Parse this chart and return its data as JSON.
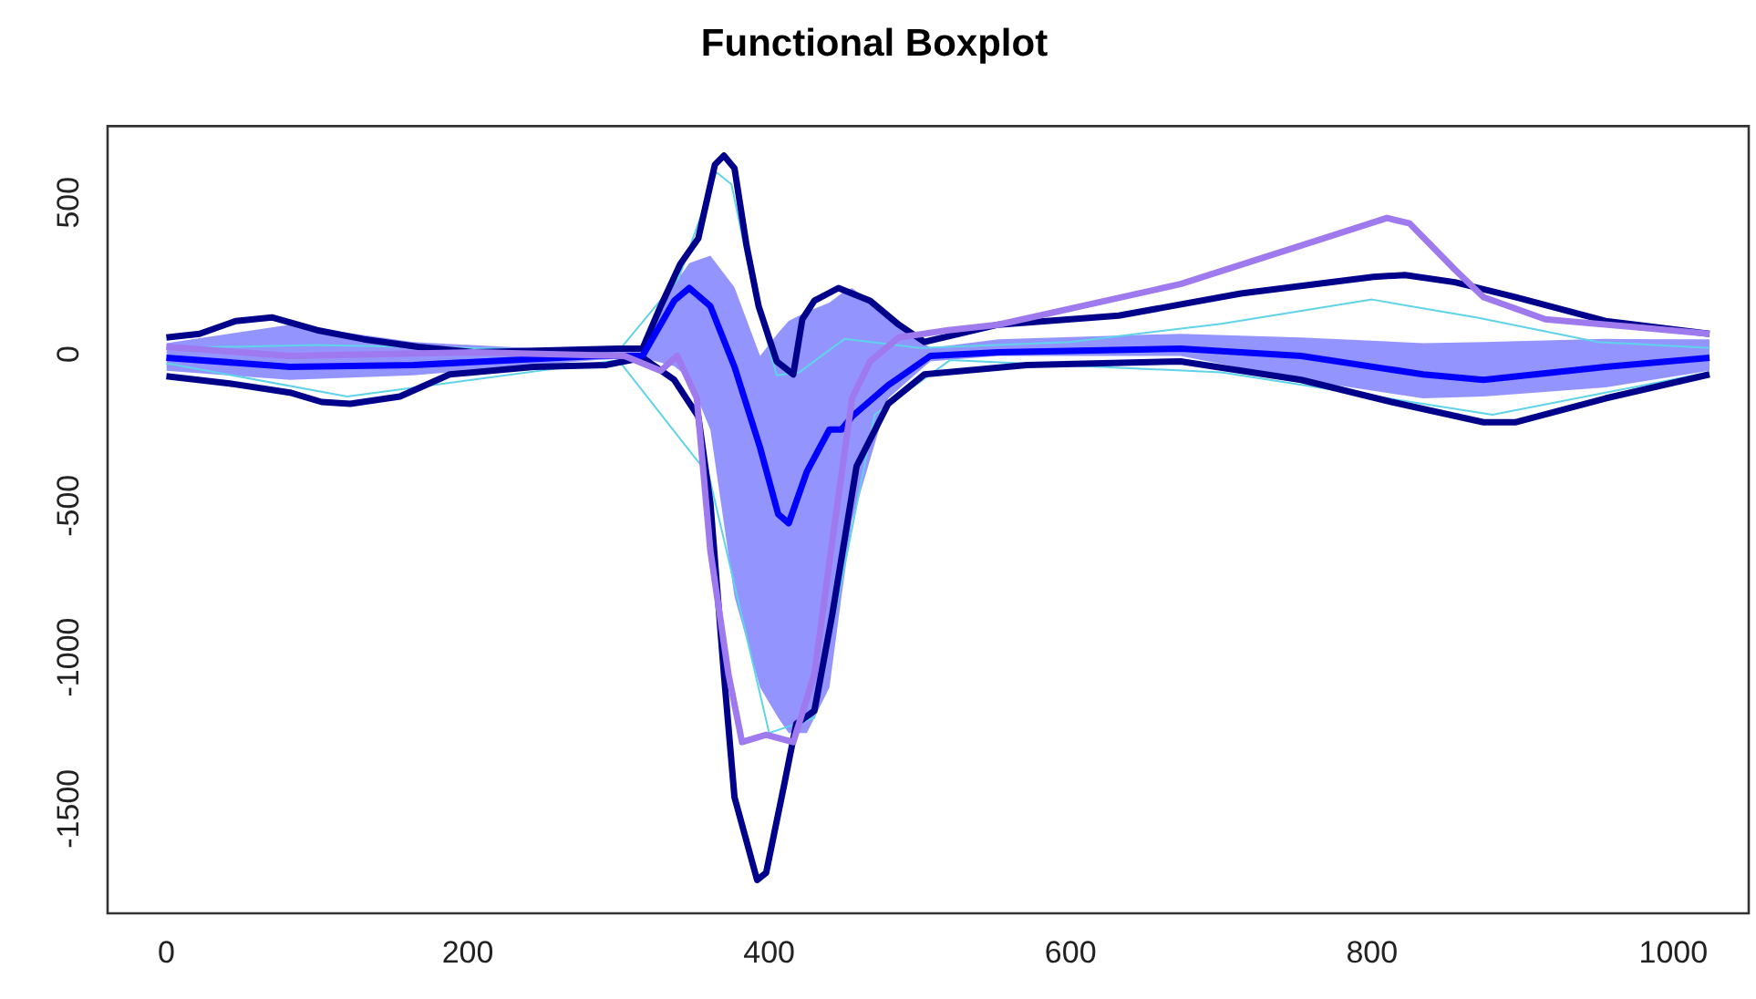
{
  "chart_data": {
    "type": "line",
    "title": "Functional Boxplot",
    "xlim": [
      -39,
      1050
    ],
    "xticks": [
      0,
      200,
      400,
      600,
      800,
      1000
    ],
    "ylim": [
      -1845,
      752
    ],
    "yticks": [
      -1500,
      -1000,
      -500,
      0,
      500
    ],
    "grid": false,
    "legend": false,
    "marker": "none",
    "line_style": "solid",
    "series": [
      {
        "color": "#5fd3e8",
        "x": [
          0,
          100,
          300,
          340,
          365,
          375,
          390,
          405,
          420,
          450,
          500,
          600,
          700,
          800,
          870,
          950,
          1024
        ],
        "values": [
          20,
          30,
          10,
          250,
          600,
          560,
          200,
          -70,
          -60,
          50,
          20,
          40,
          100,
          180,
          120,
          40,
          20
        ]
      },
      {
        "color": "#5fd3e8",
        "x": [
          0,
          120,
          300,
          360,
          400,
          430,
          470,
          520,
          700,
          880,
          1024
        ],
        "values": [
          -30,
          -140,
          -20,
          -400,
          -1250,
          -1200,
          -200,
          -20,
          -60,
          -200,
          -60
        ]
      },
      {
        "color": "#00008b",
        "x": [
          0,
          22,
          46,
          70,
          100,
          131,
          167,
          204,
          252,
          300,
          316,
          328,
          341,
          353,
          364,
          370,
          377,
          385,
          393,
          405,
          416,
          422,
          430,
          446,
          467,
          486,
          503,
          552,
          632,
          713,
          801,
          822,
          855,
          895,
          955,
          1024
        ],
        "values": [
          55,
          67,
          109,
          121,
          79,
          49,
          24,
          6,
          12,
          18,
          18,
          158,
          297,
          382,
          625,
          655,
          613,
          358,
          158,
          -24,
          -67,
          115,
          176,
          218,
          176,
          97,
          40,
          97,
          127,
          200,
          255,
          261,
          237,
          188,
          109,
          67
        ]
      },
      {
        "color": "#00008b",
        "x": [
          0,
          42,
          82,
          103,
          122,
          155,
          188,
          244,
          292,
          316,
          337,
          353,
          361,
          370,
          377,
          392,
          398,
          410,
          418,
          430,
          442,
          458,
          479,
          503,
          571,
          673,
          753,
          813,
          874,
          895,
          955,
          1024
        ],
        "values": [
          -73,
          -97,
          -127,
          -158,
          -164,
          -140,
          -67,
          -42,
          -36,
          -12,
          -85,
          -206,
          -491,
          -1056,
          -1462,
          -1735,
          -1711,
          -1420,
          -1220,
          -1177,
          -856,
          -370,
          -164,
          -67,
          -36,
          -24,
          -85,
          -158,
          -225,
          -225,
          -146,
          -67
        ]
      },
      {
        "color": "#0000ff",
        "x": [
          0,
          82,
          164,
          285,
          316,
          337,
          347,
          361,
          377,
          394,
          406,
          413,
          425,
          440,
          448,
          455,
          479,
          507,
          552,
          673,
          753,
          834,
          874,
          955,
          1024
        ],
        "values": [
          -12,
          -42,
          -36,
          -6,
          -6,
          176,
          218,
          158,
          -42,
          -309,
          -528,
          -558,
          -388,
          -249,
          -249,
          -206,
          -103,
          -6,
          6,
          18,
          -6,
          -67,
          -85,
          -42,
          -12
        ],
        "upper": [
          36,
          97,
          40,
          8,
          18,
          230,
          300,
          325,
          220,
          -6,
          70,
          110,
          140,
          170,
          200,
          218,
          130,
          20,
          49,
          67,
          55,
          36,
          40,
          50,
          49
        ],
        "lower": [
          -55,
          -85,
          -70,
          -20,
          -12,
          -40,
          -80,
          -250,
          -800,
          -1100,
          -1200,
          -1250,
          -1250,
          -1100,
          -800,
          -550,
          -146,
          -24,
          -6,
          -6,
          -85,
          -146,
          -140,
          -110,
          -55
        ]
      },
      {
        "color": "#9f79ee",
        "x": [
          0,
          82,
          204,
          304,
          328,
          339,
          352,
          361,
          373,
          382,
          398,
          416,
          430,
          442,
          455,
          467,
          486,
          519,
          552,
          673,
          753,
          810,
          825,
          855,
          874,
          915,
          1024
        ],
        "values": [
          24,
          -6,
          6,
          -6,
          -55,
          -6,
          -146,
          -649,
          -1056,
          -1280,
          -1256,
          -1280,
          -1056,
          -613,
          -146,
          -24,
          55,
          79,
          97,
          231,
          358,
          449,
          431,
          279,
          188,
          115,
          67
        ]
      }
    ]
  }
}
